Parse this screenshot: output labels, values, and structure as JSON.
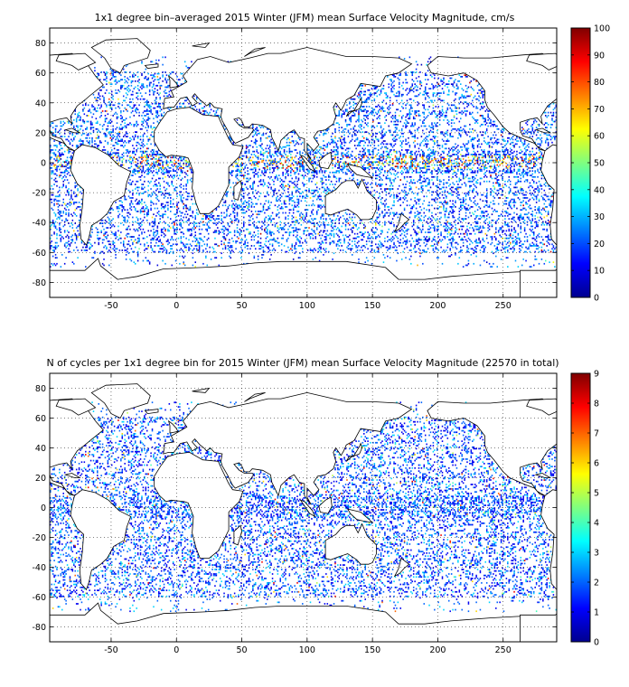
{
  "chart_data": [
    {
      "type": "heatmap",
      "title": "1x1 degree bin–averaged 2015 Winter (JFM) mean Surface Velocity Magnitude, cm/s",
      "xlabel": "",
      "ylabel": "",
      "xlim": [
        -97,
        291
      ],
      "ylim": [
        -90,
        90
      ],
      "x_ticks": [
        "-50",
        "0",
        "50",
        "100",
        "150",
        "200",
        "250"
      ],
      "x_tick_values": [
        -50,
        0,
        50,
        100,
        150,
        200,
        250
      ],
      "y_ticks": [
        "80",
        "60",
        "40",
        "20",
        "0",
        "-20",
        "-40",
        "-60",
        "-80"
      ],
      "y_tick_values": [
        80,
        60,
        40,
        20,
        0,
        -20,
        -40,
        -60,
        -80
      ],
      "colorbar": {
        "min": 0,
        "max": 100,
        "ticks": [
          "0",
          "10",
          "20",
          "30",
          "40",
          "50",
          "60",
          "70",
          "80",
          "90",
          "100"
        ],
        "tick_values": [
          0,
          10,
          20,
          30,
          40,
          50,
          60,
          70,
          80,
          90,
          100
        ],
        "colormap": "jet"
      },
      "grid": true,
      "basemap": "coastlines",
      "typical_value": 20,
      "max_value": 100
    },
    {
      "type": "heatmap",
      "title": "N of cycles per 1x1 degree bin for 2015 Winter (JFM) mean Surface Velocity Magnitude (22570 in total)",
      "xlabel": "",
      "ylabel": "",
      "xlim": [
        -97,
        291
      ],
      "ylim": [
        -90,
        90
      ],
      "x_ticks": [
        "-50",
        "0",
        "50",
        "100",
        "150",
        "200",
        "250"
      ],
      "x_tick_values": [
        -50,
        0,
        50,
        100,
        150,
        200,
        250
      ],
      "y_ticks": [
        "80",
        "60",
        "40",
        "20",
        "0",
        "-20",
        "-40",
        "-60",
        "-80"
      ],
      "y_tick_values": [
        80,
        60,
        40,
        20,
        0,
        -20,
        -40,
        -60,
        -80
      ],
      "colorbar": {
        "min": 0,
        "max": 9,
        "ticks": [
          "0",
          "1",
          "2",
          "3",
          "4",
          "5",
          "6",
          "7",
          "8",
          "9"
        ],
        "tick_values": [
          0,
          1,
          2,
          3,
          4,
          5,
          6,
          7,
          8,
          9
        ],
        "colormap": "jet"
      },
      "grid": true,
      "basemap": "coastlines",
      "total_cycles": 22570,
      "typical_value": 1.5,
      "max_value": 9
    }
  ]
}
